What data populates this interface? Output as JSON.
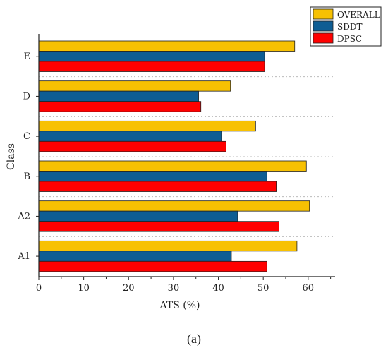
{
  "caption": "(a)",
  "chart_data": {
    "type": "bar",
    "orientation": "horizontal",
    "title": "",
    "xlabel": "ATS (%)",
    "ylabel": "Class",
    "categories": [
      "E",
      "D",
      "C",
      "B",
      "A2",
      "A1"
    ],
    "xlim": [
      0,
      66
    ],
    "xticks": [
      0,
      10,
      20,
      30,
      40,
      50,
      60
    ],
    "grid": "dotted separators between classes",
    "legend_position": "top-right",
    "series": [
      {
        "name": "OVERALL",
        "color": "#F7C103",
        "values": [
          57.0,
          42.7,
          48.3,
          59.6,
          60.3,
          57.5
        ]
      },
      {
        "name": "SDDT",
        "color": "#0E5D93",
        "values": [
          50.3,
          35.6,
          40.7,
          50.8,
          44.3,
          42.9
        ]
      },
      {
        "name": "DPSC",
        "color": "#FF0000",
        "values": [
          50.3,
          36.1,
          41.7,
          52.9,
          53.5,
          50.8
        ]
      }
    ]
  }
}
